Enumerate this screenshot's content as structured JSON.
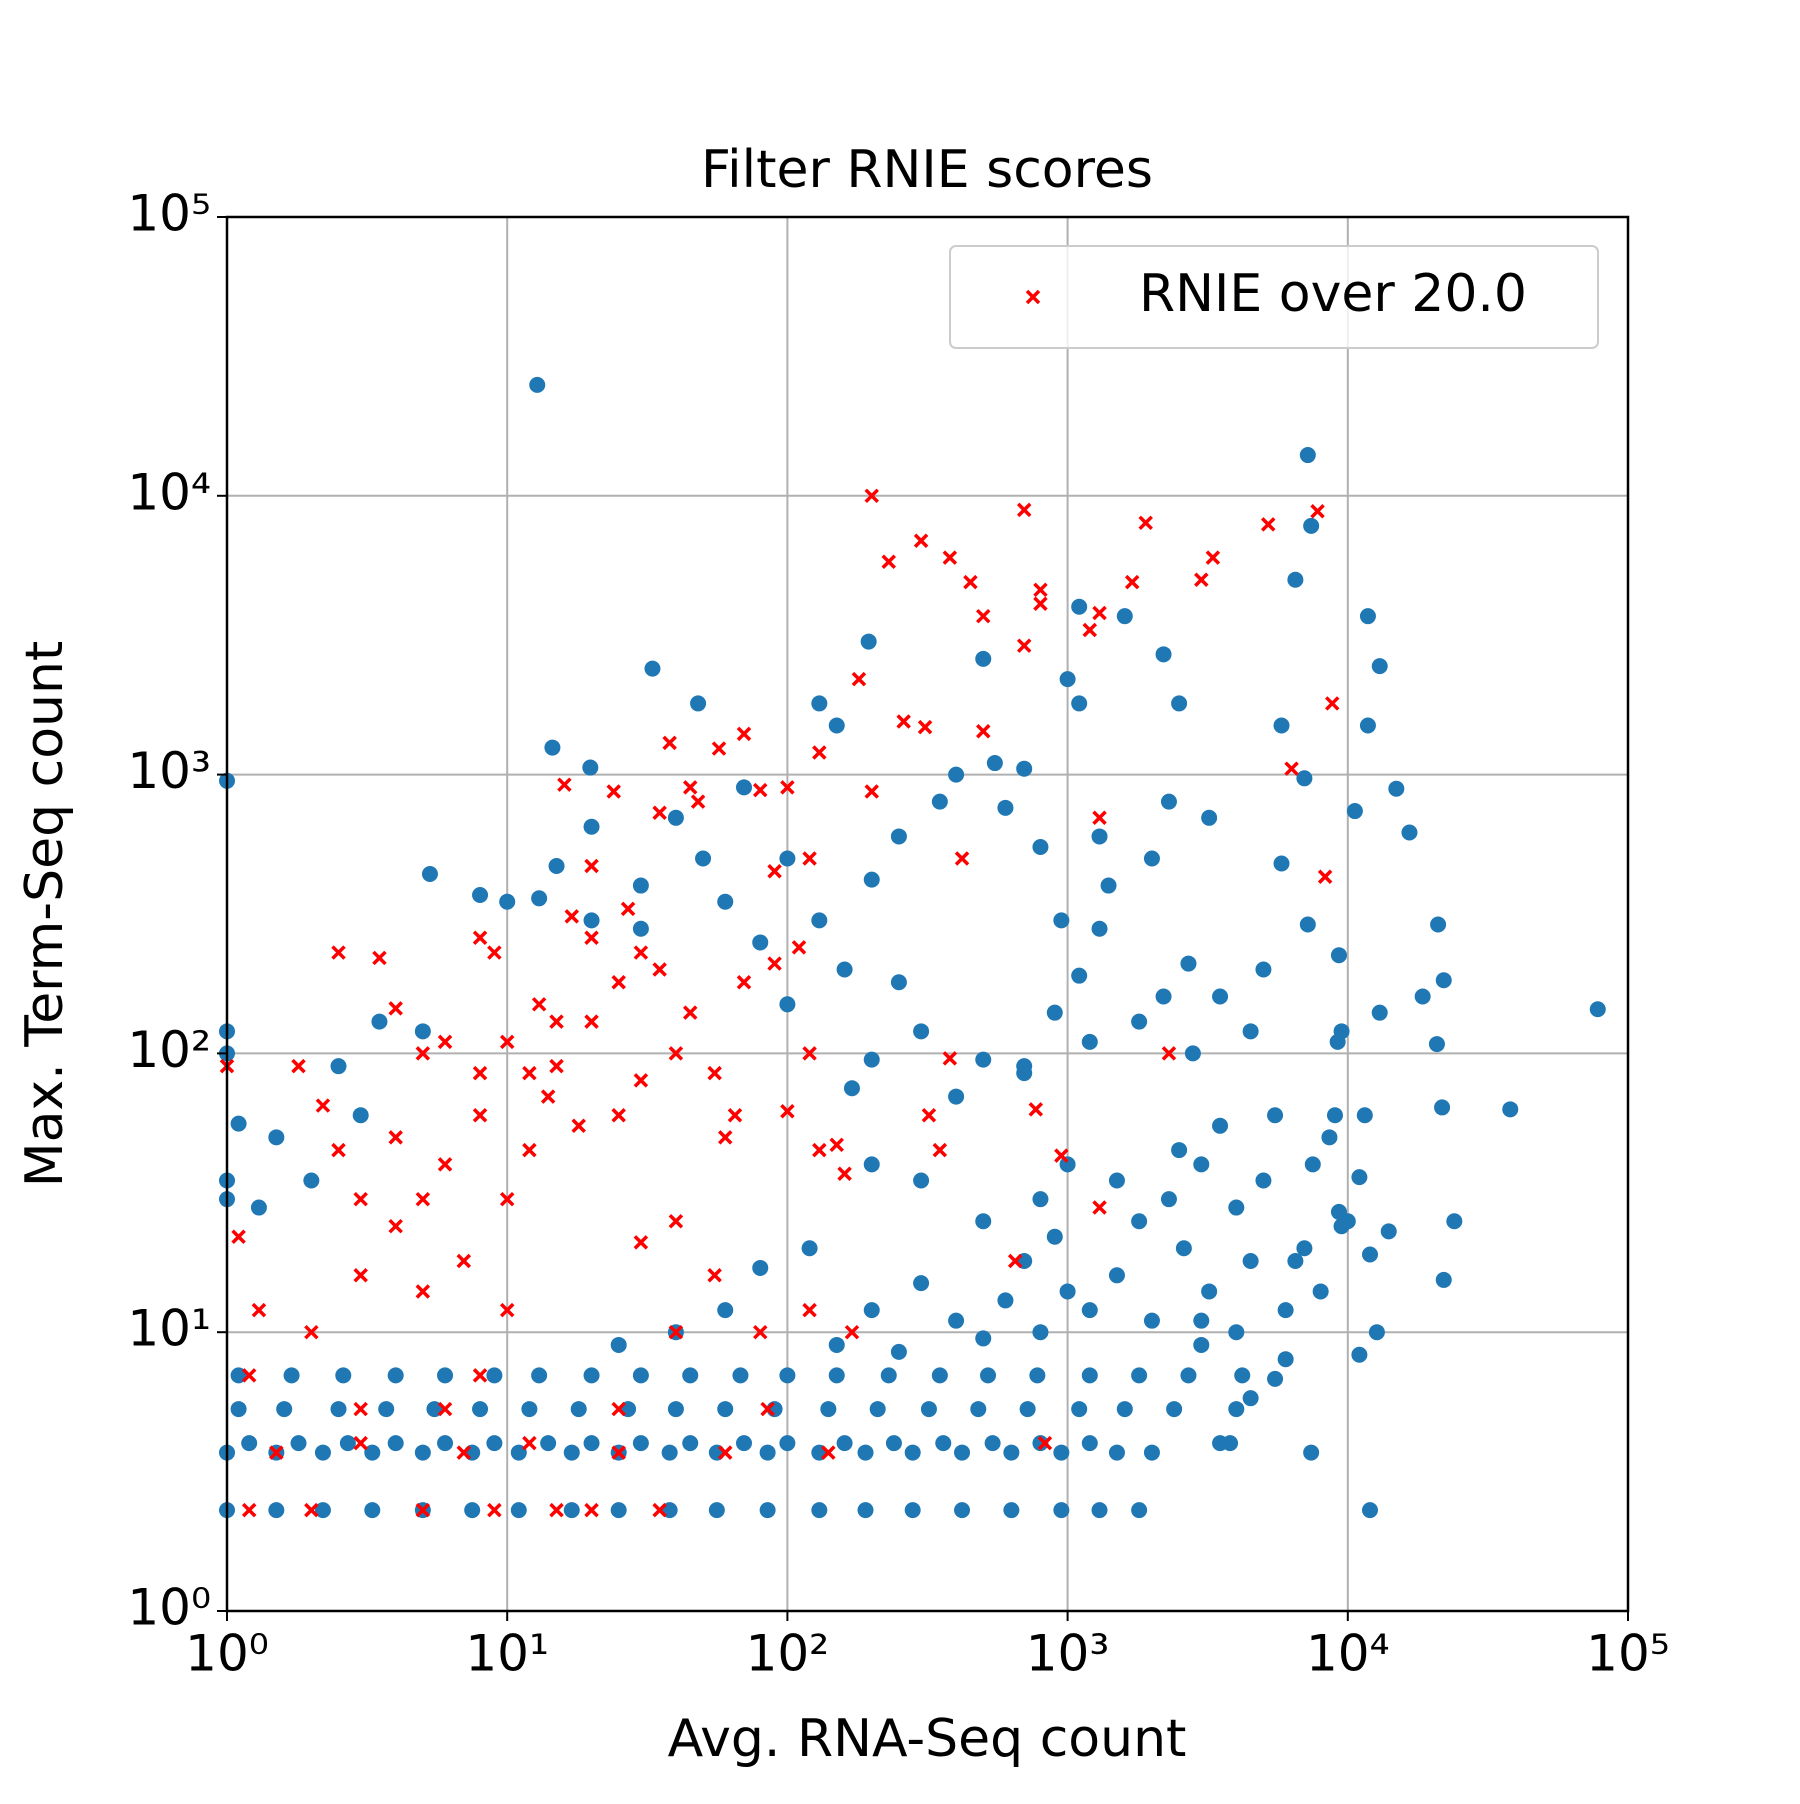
{
  "chart_data": {
    "type": "scatter",
    "title": "Filter RNIE scores",
    "xlabel": "Avg. RNA-Seq count",
    "ylabel": "Max. Term-Seq count",
    "xscale": "log",
    "yscale": "log",
    "xlim": [
      1,
      100000
    ],
    "ylim": [
      1,
      100000
    ],
    "xticks": [
      {
        "value": 1,
        "label": "10⁰"
      },
      {
        "value": 10,
        "label": "10¹"
      },
      {
        "value": 100,
        "label": "10²"
      },
      {
        "value": 1000,
        "label": "10³"
      },
      {
        "value": 10000,
        "label": "10⁴"
      },
      {
        "value": 100000,
        "label": "10⁵"
      }
    ],
    "yticks": [
      {
        "value": 1,
        "label": "10⁰"
      },
      {
        "value": 10,
        "label": "10¹"
      },
      {
        "value": 100,
        "label": "10²"
      },
      {
        "value": 1000,
        "label": "10³"
      },
      {
        "value": 10000,
        "label": "10⁴"
      },
      {
        "value": 100000,
        "label": "10⁵"
      }
    ],
    "grid": true,
    "legend": "upper right",
    "series": [
      {
        "color": "#1f77b4",
        "marker": "o",
        "x": [
          1,
          1.5,
          2.2,
          3.3,
          5,
          7.5,
          11,
          17,
          25,
          38,
          56,
          85,
          130,
          190,
          280,
          420,
          630,
          950,
          1300,
          1800,
          12000,
          1,
          1.5,
          2.2,
          3.3,
          5,
          7.5,
          11,
          17,
          25,
          38,
          56,
          85,
          130,
          190,
          280,
          420,
          630,
          950,
          1500,
          2000,
          3500,
          1.2,
          1.8,
          2.7,
          4,
          6,
          9,
          14,
          20,
          30,
          45,
          70,
          100,
          160,
          240,
          360,
          540,
          800,
          1200,
          1.1,
          1.6,
          2.5,
          3.7,
          5.5,
          8,
          12,
          18,
          27,
          40,
          60,
          90,
          140,
          210,
          320,
          480,
          720,
          1100,
          1600,
          2400,
          4000,
          1.1,
          1.7,
          2.6,
          4,
          6,
          9,
          13,
          20,
          30,
          45,
          68,
          100,
          150,
          230,
          350,
          520,
          780,
          1200,
          1800,
          2700,
          4200,
          150,
          200,
          250,
          300,
          400,
          500,
          600,
          700,
          800,
          900,
          1000,
          1200,
          1500,
          1800,
          2000,
          2300,
          2600,
          3000,
          3200,
          3500,
          4000,
          4500,
          5000,
          5500,
          6000,
          3000,
          2500,
          1500,
          1000,
          800,
          500,
          300,
          200,
          120,
          80,
          60,
          40,
          25,
          2800,
          3500,
          4500,
          5000,
          2700,
          2200,
          1800,
          1200,
          900,
          700,
          500,
          400,
          300,
          250,
          200,
          170,
          160,
          130,
          100,
          80,
          60,
          50,
          30,
          20,
          10,
          5.3,
          250,
          350,
          400,
          550,
          700,
          1000,
          1100,
          1300,
          1400,
          2000,
          2300,
          2500,
          2200,
          1600,
          1100,
          500,
          800,
          600,
          150,
          130,
          70,
          40,
          20,
          15,
          8,
          13,
          30,
          100,
          200,
          1300,
          950,
          1100,
          700,
          3200,
          6500,
          5800,
          5800,
          7000,
          7200,
          9200,
          9000,
          8600,
          10000,
          12000,
          14000,
          11000,
          11500,
          11000,
          9500,
          8000,
          7000,
          7500,
          6000,
          5500,
          4500,
          3800,
          6500,
          4000,
          3000,
          9500,
          1,
          1,
          1.1,
          1,
          1,
          1.3,
          1.5,
          2,
          3,
          2.5,
          5,
          3.5,
          12.8,
          7200,
          78000,
          38000,
          7400,
          195,
          33,
          48,
          14.5,
          19.8,
          11800,
          13000,
          11800,
          14900,
          16600,
          10600,
          21000,
          22000,
          20800,
          21700,
          24000,
          22000,
          18500,
          13000,
          9300,
          12700,
          9300,
          7400,
          1
        ],
        "y": [
          2.3,
          2.3,
          2.3,
          2.3,
          2.3,
          2.3,
          2.3,
          2.3,
          2.3,
          2.3,
          2.3,
          2.3,
          2.3,
          2.3,
          2.3,
          2.3,
          2.3,
          2.3,
          2.3,
          2.3,
          2.3,
          3.7,
          3.7,
          3.7,
          3.7,
          3.7,
          3.7,
          3.7,
          3.7,
          3.7,
          3.7,
          3.7,
          3.7,
          3.7,
          3.7,
          3.7,
          3.7,
          3.7,
          3.7,
          3.7,
          3.7,
          4,
          4,
          4,
          4,
          4,
          4,
          4,
          4,
          4,
          4,
          4,
          4,
          4,
          4,
          4,
          4,
          4,
          4,
          4,
          5.3,
          5.3,
          5.3,
          5.3,
          5.3,
          5.3,
          5.3,
          5.3,
          5.3,
          5.3,
          5.3,
          5.3,
          5.3,
          5.3,
          5.3,
          5.3,
          5.3,
          5.3,
          5.3,
          5.3,
          5.3,
          7,
          7,
          7,
          7,
          7,
          7,
          7,
          7,
          7,
          7,
          7,
          7,
          7,
          7,
          7,
          7,
          7,
          7,
          7,
          7,
          7,
          9,
          12,
          8.5,
          15,
          11,
          9.5,
          13,
          18,
          10,
          22,
          14,
          12,
          16,
          25,
          11,
          30,
          20,
          40,
          14,
          55,
          28,
          18,
          35,
          60,
          12,
          9,
          45,
          35,
          40,
          30,
          25,
          35,
          40,
          20,
          17,
          12,
          10,
          9,
          100,
          160,
          120,
          200,
          210,
          160,
          130,
          110,
          140,
          85,
          95,
          70,
          120,
          180,
          95,
          75,
          200,
          300,
          150,
          250,
          350,
          500,
          400,
          300,
          350,
          440,
          600,
          800,
          1000,
          1100,
          1050,
          2200,
          1800,
          600,
          400,
          500,
          800,
          1800,
          2700,
          3700,
          4000,
          2600,
          550,
          760,
          1500,
          1800,
          900,
          700,
          650,
          470,
          370,
          360,
          280,
          500,
          420,
          280,
          300,
          190,
          90,
          700,
          5000,
          1500,
          480,
          970,
          290,
          110,
          60,
          50,
          25,
          19,
          23,
          36,
          60,
          8.3,
          24,
          14,
          20,
          40,
          8,
          6.8,
          5.8,
          4,
          18,
          10,
          11,
          120,
          120,
          100,
          56,
          35,
          30,
          28,
          50,
          35,
          60,
          90,
          120,
          130,
          25000,
          14000,
          144,
          63,
          3.7,
          3000,
          2400,
          1800,
          1250,
          1060,
          3700,
          2450,
          1500,
          890,
          620,
          740,
          290,
          183,
          108,
          64,
          25,
          15.4,
          160,
          140,
          27,
          10,
          225,
          7800,
          950
        ]
      },
      {
        "name": "RNIE over 20.0",
        "color": "#ff0000",
        "marker": "x",
        "x": [
          1,
          2.5,
          3.5,
          1.8,
          2.2,
          2.5,
          3,
          4,
          4,
          5,
          6,
          8,
          9,
          10,
          12,
          13,
          15,
          17,
          20,
          16,
          20,
          24,
          27,
          30,
          35,
          38,
          45,
          48,
          57,
          70,
          80,
          90,
          100,
          110,
          120,
          130,
          180,
          200,
          200,
          230,
          260,
          300,
          310,
          380,
          420,
          450,
          500,
          500,
          700,
          700,
          800,
          800,
          1200,
          1300,
          1300,
          1700,
          1900,
          3000,
          3300,
          5200,
          7800,
          8800,
          8300,
          6300,
          2300,
          1300,
          950,
          770,
          650,
          830,
          380,
          320,
          350,
          160,
          130,
          85,
          80,
          120,
          170,
          140,
          60,
          40,
          55,
          30,
          40,
          25,
          20,
          35,
          15,
          9,
          5,
          2,
          1.2,
          1.5,
          3,
          7,
          12,
          25,
          1.2,
          3,
          6,
          8,
          10,
          7,
          5,
          4,
          3,
          2,
          1.3,
          1.1,
          5,
          8,
          12,
          14,
          10,
          6,
          18,
          25,
          30,
          40,
          55,
          60,
          45,
          35,
          25,
          70,
          90,
          65,
          100,
          120,
          150,
          20,
          15,
          8
        ],
        "y": [
          90,
          230,
          220,
          90,
          65,
          45,
          30,
          50,
          145,
          100,
          110,
          260,
          230,
          110,
          85,
          150,
          130,
          310,
          260,
          920,
          470,
          870,
          330,
          230,
          730,
          1300,
          900,
          800,
          1240,
          1400,
          880,
          450,
          900,
          240,
          500,
          1200,
          2200,
          10000,
          870,
          5800,
          1550,
          6900,
          1480,
          6000,
          500,
          4900,
          1430,
          3700,
          8900,
          2900,
          4600,
          4100,
          3300,
          3800,
          700,
          4900,
          8000,
          5000,
          6000,
          7900,
          8800,
          1800,
          430,
          1050,
          100,
          28,
          43,
          63,
          18,
          4,
          96,
          60,
          45,
          37,
          45,
          5.3,
          10,
          12,
          10,
          3.7,
          3.7,
          25,
          16,
          21,
          10,
          5.3,
          2.3,
          2.3,
          2.3,
          2.3,
          2.3,
          2.3,
          2.3,
          3.7,
          4,
          3.7,
          4,
          3.7,
          7,
          5.3,
          5.3,
          7,
          12,
          18,
          14,
          24,
          16,
          10,
          12,
          22,
          30,
          60,
          45,
          70,
          30,
          40,
          55,
          60,
          80,
          100,
          85,
          50,
          140,
          200,
          180,
          180,
          210,
          60,
          62,
          100,
          47,
          130,
          90,
          85
        ]
      }
    ]
  }
}
